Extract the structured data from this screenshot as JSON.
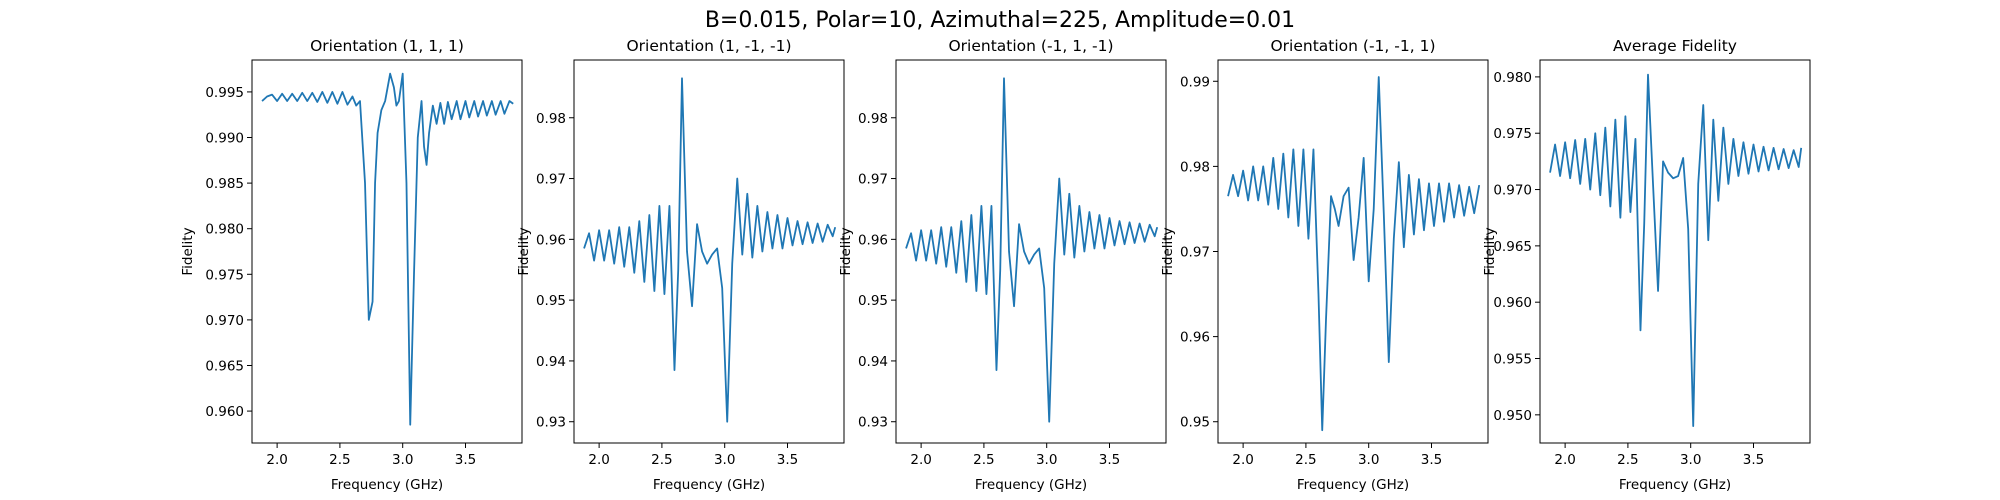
{
  "figure": {
    "suptitle": "B=0.015, Polar=10, Azimuthal=225, Amplitude=0.01",
    "line_color": "#1f77b4"
  },
  "chart_data": [
    {
      "type": "line",
      "title": "Orientation (1, 1, 1)",
      "xlabel": "Frequency (GHz)",
      "ylabel": "Fidelity",
      "xlim": [
        1.8,
        3.95
      ],
      "ylim": [
        0.9565,
        0.9985
      ],
      "xticks": [
        2.0,
        2.5,
        3.0,
        3.5
      ],
      "xtick_labels": [
        "2.0",
        "2.5",
        "3.0",
        "3.5"
      ],
      "yticks": [
        0.96,
        0.965,
        0.97,
        0.975,
        0.98,
        0.985,
        0.99,
        0.995
      ],
      "ytick_labels": [
        "0.960",
        "0.965",
        "0.970",
        "0.975",
        "0.980",
        "0.985",
        "0.990",
        "0.995"
      ],
      "series": [
        {
          "x": [
            1.88,
            1.92,
            1.96,
            2.0,
            2.04,
            2.08,
            2.12,
            2.16,
            2.2,
            2.24,
            2.28,
            2.32,
            2.36,
            2.4,
            2.44,
            2.48,
            2.52,
            2.56,
            2.6,
            2.63,
            2.66,
            2.7,
            2.73,
            2.76,
            2.78,
            2.8,
            2.83,
            2.86,
            2.9,
            2.93,
            2.95,
            2.97,
            3.0,
            3.03,
            3.06,
            3.09,
            3.12,
            3.15,
            3.17,
            3.19,
            3.21,
            3.24,
            3.27,
            3.3,
            3.33,
            3.36,
            3.39,
            3.43,
            3.46,
            3.5,
            3.53,
            3.57,
            3.6,
            3.64,
            3.67,
            3.71,
            3.74,
            3.78,
            3.81,
            3.85,
            3.88
          ],
          "y": [
            0.994,
            0.9945,
            0.9947,
            0.994,
            0.9948,
            0.994,
            0.9948,
            0.994,
            0.9949,
            0.994,
            0.9949,
            0.9939,
            0.995,
            0.9938,
            0.995,
            0.9937,
            0.995,
            0.9936,
            0.9945,
            0.9935,
            0.994,
            0.985,
            0.97,
            0.972,
            0.985,
            0.9905,
            0.993,
            0.994,
            0.997,
            0.9955,
            0.9935,
            0.994,
            0.997,
            0.985,
            0.9585,
            0.975,
            0.99,
            0.994,
            0.989,
            0.987,
            0.9905,
            0.9935,
            0.9915,
            0.9938,
            0.9915,
            0.9939,
            0.992,
            0.994,
            0.992,
            0.994,
            0.9922,
            0.994,
            0.9923,
            0.994,
            0.9924,
            0.994,
            0.9925,
            0.994,
            0.9926,
            0.994,
            0.9937
          ]
        }
      ]
    },
    {
      "type": "line",
      "title": "Orientation (1, -1, -1)",
      "xlabel": "Frequency (GHz)",
      "ylabel": "Fidelity",
      "xlim": [
        1.8,
        3.95
      ],
      "ylim": [
        0.9265,
        0.9895
      ],
      "xticks": [
        2.0,
        2.5,
        3.0,
        3.5
      ],
      "xtick_labels": [
        "2.0",
        "2.5",
        "3.0",
        "3.5"
      ],
      "yticks": [
        0.93,
        0.94,
        0.95,
        0.96,
        0.97,
        0.98
      ],
      "ytick_labels": [
        "0.93",
        "0.94",
        "0.95",
        "0.96",
        "0.97",
        "0.98"
      ],
      "series": [
        {
          "x": [
            1.88,
            1.92,
            1.96,
            2.0,
            2.04,
            2.08,
            2.12,
            2.16,
            2.2,
            2.24,
            2.28,
            2.32,
            2.36,
            2.4,
            2.44,
            2.48,
            2.52,
            2.56,
            2.6,
            2.63,
            2.66,
            2.7,
            2.74,
            2.78,
            2.82,
            2.86,
            2.9,
            2.94,
            2.98,
            3.02,
            3.06,
            3.1,
            3.14,
            3.18,
            3.22,
            3.26,
            3.3,
            3.34,
            3.38,
            3.42,
            3.46,
            3.5,
            3.54,
            3.58,
            3.62,
            3.66,
            3.7,
            3.74,
            3.78,
            3.82,
            3.86,
            3.88
          ],
          "y": [
            0.9585,
            0.961,
            0.9565,
            0.9615,
            0.9565,
            0.9615,
            0.956,
            0.962,
            0.9555,
            0.962,
            0.9545,
            0.963,
            0.953,
            0.964,
            0.9515,
            0.9655,
            0.951,
            0.9655,
            0.9385,
            0.955,
            0.9865,
            0.958,
            0.949,
            0.9625,
            0.958,
            0.956,
            0.9575,
            0.9585,
            0.952,
            0.93,
            0.956,
            0.97,
            0.9575,
            0.9675,
            0.957,
            0.9655,
            0.958,
            0.9645,
            0.9585,
            0.964,
            0.9585,
            0.9635,
            0.959,
            0.963,
            0.9592,
            0.9628,
            0.9594,
            0.9626,
            0.9596,
            0.9624,
            0.9605,
            0.962
          ]
        }
      ]
    },
    {
      "type": "line",
      "title": "Orientation (-1, 1, -1)",
      "xlabel": "Frequency (GHz)",
      "ylabel": "Fidelity",
      "xlim": [
        1.8,
        3.95
      ],
      "ylim": [
        0.9265,
        0.9895
      ],
      "xticks": [
        2.0,
        2.5,
        3.0,
        3.5
      ],
      "xtick_labels": [
        "2.0",
        "2.5",
        "3.0",
        "3.5"
      ],
      "yticks": [
        0.93,
        0.94,
        0.95,
        0.96,
        0.97,
        0.98
      ],
      "ytick_labels": [
        "0.93",
        "0.94",
        "0.95",
        "0.96",
        "0.97",
        "0.98"
      ],
      "series": [
        {
          "x": [
            1.88,
            1.92,
            1.96,
            2.0,
            2.04,
            2.08,
            2.12,
            2.16,
            2.2,
            2.24,
            2.28,
            2.32,
            2.36,
            2.4,
            2.44,
            2.48,
            2.52,
            2.56,
            2.6,
            2.63,
            2.66,
            2.7,
            2.74,
            2.78,
            2.82,
            2.86,
            2.9,
            2.94,
            2.98,
            3.02,
            3.06,
            3.1,
            3.14,
            3.18,
            3.22,
            3.26,
            3.3,
            3.34,
            3.38,
            3.42,
            3.46,
            3.5,
            3.54,
            3.58,
            3.62,
            3.66,
            3.7,
            3.74,
            3.78,
            3.82,
            3.86,
            3.88
          ],
          "y": [
            0.9585,
            0.961,
            0.9565,
            0.9615,
            0.9565,
            0.9615,
            0.956,
            0.962,
            0.9555,
            0.962,
            0.9545,
            0.963,
            0.953,
            0.964,
            0.9515,
            0.9655,
            0.951,
            0.9655,
            0.9385,
            0.955,
            0.9865,
            0.958,
            0.949,
            0.9625,
            0.958,
            0.956,
            0.9575,
            0.9585,
            0.952,
            0.93,
            0.956,
            0.97,
            0.9575,
            0.9675,
            0.957,
            0.9655,
            0.958,
            0.9645,
            0.9585,
            0.964,
            0.9585,
            0.9635,
            0.959,
            0.963,
            0.9592,
            0.9628,
            0.9594,
            0.9626,
            0.9596,
            0.9624,
            0.9605,
            0.962
          ]
        }
      ]
    },
    {
      "type": "line",
      "title": "Orientation (-1, -1, 1)",
      "xlabel": "Frequency (GHz)",
      "ylabel": "Fidelity",
      "xlim": [
        1.8,
        3.95
      ],
      "ylim": [
        0.9475,
        0.9925
      ],
      "xticks": [
        2.0,
        2.5,
        3.0,
        3.5
      ],
      "xtick_labels": [
        "2.0",
        "2.5",
        "3.0",
        "3.5"
      ],
      "yticks": [
        0.95,
        0.96,
        0.97,
        0.98,
        0.99
      ],
      "ytick_labels": [
        "0.95",
        "0.96",
        "0.97",
        "0.98",
        "0.99"
      ],
      "series": [
        {
          "x": [
            1.88,
            1.92,
            1.96,
            2.0,
            2.04,
            2.08,
            2.12,
            2.16,
            2.2,
            2.24,
            2.28,
            2.32,
            2.36,
            2.4,
            2.44,
            2.48,
            2.52,
            2.56,
            2.6,
            2.63,
            2.66,
            2.7,
            2.73,
            2.76,
            2.8,
            2.84,
            2.88,
            2.92,
            2.96,
            3.0,
            3.04,
            3.08,
            3.12,
            3.16,
            3.2,
            3.24,
            3.28,
            3.32,
            3.36,
            3.4,
            3.44,
            3.48,
            3.52,
            3.56,
            3.6,
            3.64,
            3.68,
            3.72,
            3.76,
            3.8,
            3.84,
            3.88
          ],
          "y": [
            0.9765,
            0.979,
            0.9765,
            0.9795,
            0.976,
            0.98,
            0.976,
            0.98,
            0.9755,
            0.981,
            0.975,
            0.9815,
            0.974,
            0.982,
            0.973,
            0.982,
            0.9715,
            0.982,
            0.965,
            0.949,
            0.962,
            0.9765,
            0.975,
            0.973,
            0.9765,
            0.9775,
            0.969,
            0.974,
            0.981,
            0.9665,
            0.975,
            0.9905,
            0.9745,
            0.957,
            0.9715,
            0.9805,
            0.9705,
            0.979,
            0.972,
            0.9785,
            0.9725,
            0.978,
            0.973,
            0.978,
            0.9735,
            0.978,
            0.974,
            0.9778,
            0.9742,
            0.9776,
            0.9745,
            0.9778
          ]
        }
      ]
    },
    {
      "type": "line",
      "title": "Average Fidelity",
      "xlabel": "Frequency (GHz)",
      "ylabel": "Fidelity",
      "xlim": [
        1.8,
        3.95
      ],
      "ylim": [
        0.9475,
        0.9815
      ],
      "xticks": [
        2.0,
        2.5,
        3.0,
        3.5
      ],
      "xtick_labels": [
        "2.0",
        "2.5",
        "3.0",
        "3.5"
      ],
      "yticks": [
        0.95,
        0.955,
        0.96,
        0.965,
        0.97,
        0.975,
        0.98
      ],
      "ytick_labels": [
        "0.950",
        "0.955",
        "0.960",
        "0.965",
        "0.970",
        "0.975",
        "0.980"
      ],
      "series": [
        {
          "x": [
            1.88,
            1.92,
            1.96,
            2.0,
            2.04,
            2.08,
            2.12,
            2.16,
            2.2,
            2.24,
            2.28,
            2.32,
            2.36,
            2.4,
            2.44,
            2.48,
            2.52,
            2.56,
            2.6,
            2.63,
            2.66,
            2.7,
            2.74,
            2.78,
            2.82,
            2.86,
            2.9,
            2.94,
            2.98,
            3.02,
            3.06,
            3.1,
            3.14,
            3.18,
            3.22,
            3.26,
            3.3,
            3.34,
            3.38,
            3.42,
            3.46,
            3.5,
            3.54,
            3.58,
            3.62,
            3.66,
            3.7,
            3.74,
            3.78,
            3.82,
            3.86,
            3.88
          ],
          "y": [
            0.9715,
            0.974,
            0.9712,
            0.9742,
            0.971,
            0.9744,
            0.9705,
            0.9745,
            0.97,
            0.975,
            0.9695,
            0.9755,
            0.9685,
            0.9762,
            0.9675,
            0.9765,
            0.968,
            0.9745,
            0.9575,
            0.967,
            0.9802,
            0.9705,
            0.961,
            0.9725,
            0.9715,
            0.971,
            0.9712,
            0.9728,
            0.9665,
            0.949,
            0.9705,
            0.9775,
            0.9655,
            0.9762,
            0.969,
            0.9755,
            0.9705,
            0.9745,
            0.9712,
            0.9742,
            0.9714,
            0.974,
            0.9716,
            0.9738,
            0.9717,
            0.9737,
            0.9718,
            0.9736,
            0.9719,
            0.9735,
            0.972,
            0.9737
          ]
        }
      ]
    }
  ]
}
